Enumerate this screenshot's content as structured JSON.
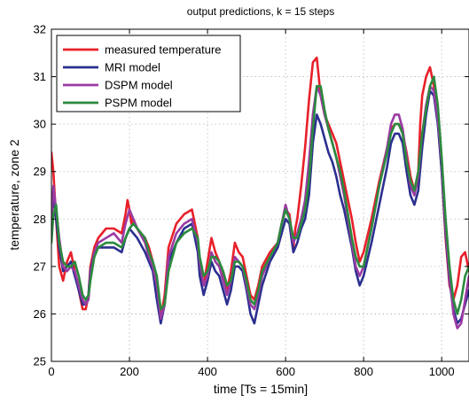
{
  "chart_data": {
    "type": "line",
    "title": "output predictions, k = 15 steps",
    "xlabel": "time [Ts = 15min]",
    "ylabel": "temperature, zone 2",
    "xlim": [
      0,
      1070
    ],
    "ylim": [
      25,
      32
    ],
    "xticks": [
      0,
      200,
      400,
      600,
      800,
      1000
    ],
    "yticks": [
      25,
      26,
      27,
      28,
      29,
      30,
      31,
      32
    ],
    "grid": true,
    "legend_position": "top-left",
    "series": [
      {
        "name": "measured temperature",
        "color": "#e8202a",
        "x": [
          0,
          5,
          12,
          20,
          30,
          40,
          50,
          60,
          70,
          80,
          88,
          95,
          100,
          110,
          120,
          140,
          160,
          180,
          190,
          195,
          200,
          205,
          210,
          215,
          220,
          240,
          250,
          260,
          270,
          280,
          290,
          300,
          320,
          340,
          360,
          375,
          380,
          390,
          400,
          410,
          420,
          430,
          440,
          450,
          460,
          470,
          480,
          490,
          500,
          510,
          520,
          530,
          540,
          560,
          580,
          590,
          600,
          610,
          620,
          625,
          630,
          640,
          650,
          660,
          670,
          680,
          685,
          690,
          700,
          710,
          720,
          730,
          740,
          750,
          760,
          770,
          780,
          790,
          800,
          820,
          840,
          860,
          870,
          880,
          890,
          900,
          910,
          920,
          930,
          940,
          945,
          950,
          960,
          970,
          980,
          990,
          1000,
          1010,
          1020,
          1030,
          1040,
          1050,
          1060,
          1070
        ],
        "values": [
          29.4,
          29.0,
          28.0,
          27.0,
          26.7,
          27.1,
          27.3,
          26.9,
          26.5,
          26.1,
          26.1,
          26.4,
          27.0,
          27.4,
          27.6,
          27.8,
          27.8,
          27.7,
          28.1,
          28.4,
          28.2,
          27.9,
          28.0,
          27.9,
          27.8,
          27.6,
          27.4,
          27.1,
          26.5,
          25.9,
          26.4,
          27.4,
          27.9,
          28.1,
          28.2,
          27.6,
          27.0,
          26.6,
          27.1,
          27.6,
          27.3,
          27.1,
          26.8,
          26.5,
          26.9,
          27.5,
          27.3,
          27.2,
          26.8,
          26.4,
          26.3,
          26.6,
          27.0,
          27.3,
          27.5,
          27.9,
          28.2,
          28.1,
          27.4,
          27.8,
          28.0,
          28.7,
          29.5,
          30.5,
          31.3,
          31.4,
          31.0,
          30.6,
          30.2,
          30.0,
          29.8,
          29.6,
          29.2,
          28.8,
          28.4,
          28.0,
          27.5,
          27.1,
          27.3,
          28.0,
          28.8,
          29.5,
          29.9,
          30.0,
          30.0,
          29.8,
          29.4,
          28.9,
          28.6,
          29.0,
          30.0,
          30.6,
          31.0,
          31.2,
          30.8,
          30.2,
          29.0,
          27.6,
          26.6,
          26.3,
          26.6,
          27.2,
          27.3,
          26.9
        ]
      },
      {
        "name": "MRI model",
        "color": "#2b2f8f",
        "x": [
          0,
          5,
          12,
          20,
          30,
          40,
          50,
          60,
          70,
          80,
          88,
          95,
          100,
          110,
          120,
          140,
          160,
          180,
          190,
          200,
          210,
          220,
          240,
          250,
          260,
          270,
          280,
          290,
          300,
          320,
          340,
          360,
          375,
          380,
          390,
          400,
          410,
          420,
          430,
          440,
          450,
          460,
          470,
          480,
          490,
          500,
          510,
          520,
          530,
          540,
          560,
          580,
          590,
          600,
          610,
          620,
          630,
          640,
          650,
          660,
          670,
          680,
          690,
          700,
          710,
          720,
          730,
          740,
          750,
          760,
          770,
          780,
          790,
          800,
          820,
          840,
          860,
          870,
          880,
          890,
          900,
          910,
          920,
          930,
          940,
          950,
          960,
          970,
          980,
          990,
          1000,
          1010,
          1020,
          1030,
          1040,
          1050,
          1060,
          1070
        ],
        "values": [
          28.2,
          28.4,
          28.0,
          27.4,
          26.9,
          27.0,
          27.1,
          26.8,
          26.5,
          26.2,
          26.2,
          26.4,
          26.9,
          27.3,
          27.4,
          27.4,
          27.4,
          27.3,
          27.6,
          27.8,
          27.7,
          27.6,
          27.3,
          27.1,
          26.9,
          26.3,
          25.8,
          26.2,
          27.1,
          27.5,
          27.8,
          27.9,
          27.3,
          26.8,
          26.4,
          26.7,
          27.1,
          26.9,
          26.8,
          26.5,
          26.2,
          26.5,
          27.0,
          27.0,
          26.9,
          26.5,
          26.0,
          25.8,
          26.2,
          26.6,
          27.1,
          27.4,
          27.7,
          28.0,
          27.9,
          27.3,
          27.5,
          27.8,
          28.0,
          28.5,
          29.6,
          30.2,
          30.0,
          29.7,
          29.4,
          29.2,
          28.9,
          28.5,
          28.2,
          27.8,
          27.4,
          26.9,
          26.6,
          26.8,
          27.5,
          28.3,
          29.1,
          29.6,
          29.8,
          29.8,
          29.6,
          29.0,
          28.5,
          28.3,
          28.6,
          29.5,
          30.2,
          30.7,
          30.6,
          30.0,
          29.0,
          27.7,
          26.7,
          26.1,
          25.8,
          25.9,
          26.2,
          26.5
        ]
      },
      {
        "name": "DSPM model",
        "color": "#9b3aa3",
        "x": [
          0,
          5,
          12,
          20,
          30,
          40,
          50,
          60,
          70,
          80,
          88,
          95,
          100,
          110,
          120,
          140,
          160,
          180,
          190,
          200,
          210,
          220,
          240,
          250,
          260,
          270,
          280,
          290,
          300,
          320,
          340,
          360,
          375,
          380,
          390,
          400,
          410,
          420,
          430,
          440,
          450,
          460,
          470,
          480,
          490,
          500,
          510,
          520,
          530,
          540,
          560,
          580,
          590,
          600,
          610,
          620,
          630,
          640,
          650,
          660,
          670,
          680,
          690,
          700,
          710,
          720,
          730,
          740,
          750,
          760,
          770,
          780,
          790,
          800,
          820,
          840,
          860,
          870,
          880,
          890,
          900,
          910,
          920,
          930,
          940,
          950,
          960,
          970,
          980,
          990,
          1000,
          1010,
          1020,
          1030,
          1040,
          1050,
          1060,
          1070
        ],
        "values": [
          27.9,
          28.7,
          28.2,
          27.6,
          27.0,
          26.9,
          27.0,
          26.9,
          26.6,
          26.3,
          26.2,
          26.3,
          26.8,
          27.3,
          27.5,
          27.6,
          27.7,
          27.5,
          27.9,
          28.2,
          28.0,
          27.8,
          27.5,
          27.2,
          27.0,
          26.6,
          25.9,
          26.2,
          27.2,
          27.7,
          27.9,
          28.0,
          27.5,
          27.1,
          26.6,
          26.8,
          27.3,
          27.1,
          27.0,
          26.7,
          26.4,
          26.7,
          27.2,
          27.1,
          27.0,
          26.6,
          26.2,
          26.1,
          26.4,
          26.8,
          27.2,
          27.5,
          27.9,
          28.3,
          28.0,
          27.5,
          27.7,
          28.0,
          28.4,
          29.2,
          30.2,
          30.8,
          30.6,
          30.2,
          29.9,
          29.6,
          29.3,
          28.9,
          28.5,
          28.0,
          27.5,
          27.0,
          26.8,
          27.0,
          27.8,
          28.7,
          29.5,
          30.0,
          30.2,
          30.2,
          29.9,
          29.3,
          28.7,
          28.5,
          28.9,
          29.8,
          30.4,
          30.8,
          30.7,
          30.1,
          29.2,
          27.8,
          26.8,
          26.0,
          25.7,
          25.8,
          26.3,
          26.8
        ]
      },
      {
        "name": "PSPM model",
        "color": "#2b8a3e",
        "x": [
          0,
          5,
          12,
          20,
          30,
          40,
          50,
          60,
          70,
          80,
          88,
          95,
          100,
          110,
          120,
          140,
          160,
          180,
          190,
          200,
          210,
          220,
          240,
          250,
          260,
          270,
          280,
          290,
          300,
          320,
          340,
          360,
          375,
          380,
          390,
          400,
          410,
          420,
          430,
          440,
          450,
          460,
          470,
          480,
          490,
          500,
          510,
          520,
          530,
          540,
          560,
          580,
          590,
          600,
          610,
          620,
          630,
          640,
          650,
          660,
          670,
          680,
          690,
          700,
          710,
          720,
          730,
          740,
          750,
          760,
          770,
          780,
          790,
          800,
          820,
          840,
          860,
          870,
          880,
          890,
          900,
          910,
          920,
          930,
          940,
          950,
          960,
          970,
          980,
          990,
          1000,
          1010,
          1020,
          1030,
          1040,
          1050,
          1060,
          1070
        ],
        "values": [
          27.5,
          28.1,
          28.3,
          27.5,
          27.1,
          27.0,
          27.0,
          27.1,
          26.8,
          26.4,
          26.3,
          26.4,
          26.7,
          27.2,
          27.4,
          27.5,
          27.5,
          27.4,
          27.6,
          27.8,
          27.9,
          27.8,
          27.6,
          27.3,
          27.1,
          26.8,
          26.1,
          26.2,
          26.9,
          27.5,
          27.7,
          27.8,
          27.6,
          27.2,
          26.8,
          26.9,
          27.2,
          27.2,
          27.1,
          26.9,
          26.6,
          26.7,
          27.1,
          27.1,
          27.0,
          26.7,
          26.3,
          26.2,
          26.5,
          26.9,
          27.2,
          27.5,
          27.9,
          28.2,
          28.0,
          27.6,
          27.6,
          27.9,
          28.2,
          28.8,
          29.9,
          30.8,
          30.8,
          30.3,
          29.9,
          29.6,
          29.3,
          29.0,
          28.6,
          28.1,
          27.6,
          27.2,
          27.0,
          27.0,
          27.8,
          28.7,
          29.4,
          29.8,
          30.0,
          30.0,
          29.8,
          29.2,
          28.8,
          28.6,
          29.0,
          29.8,
          30.3,
          30.8,
          31.0,
          30.4,
          29.3,
          28.0,
          27.0,
          26.3,
          26.0,
          26.3,
          26.8,
          27.0
        ]
      }
    ]
  }
}
